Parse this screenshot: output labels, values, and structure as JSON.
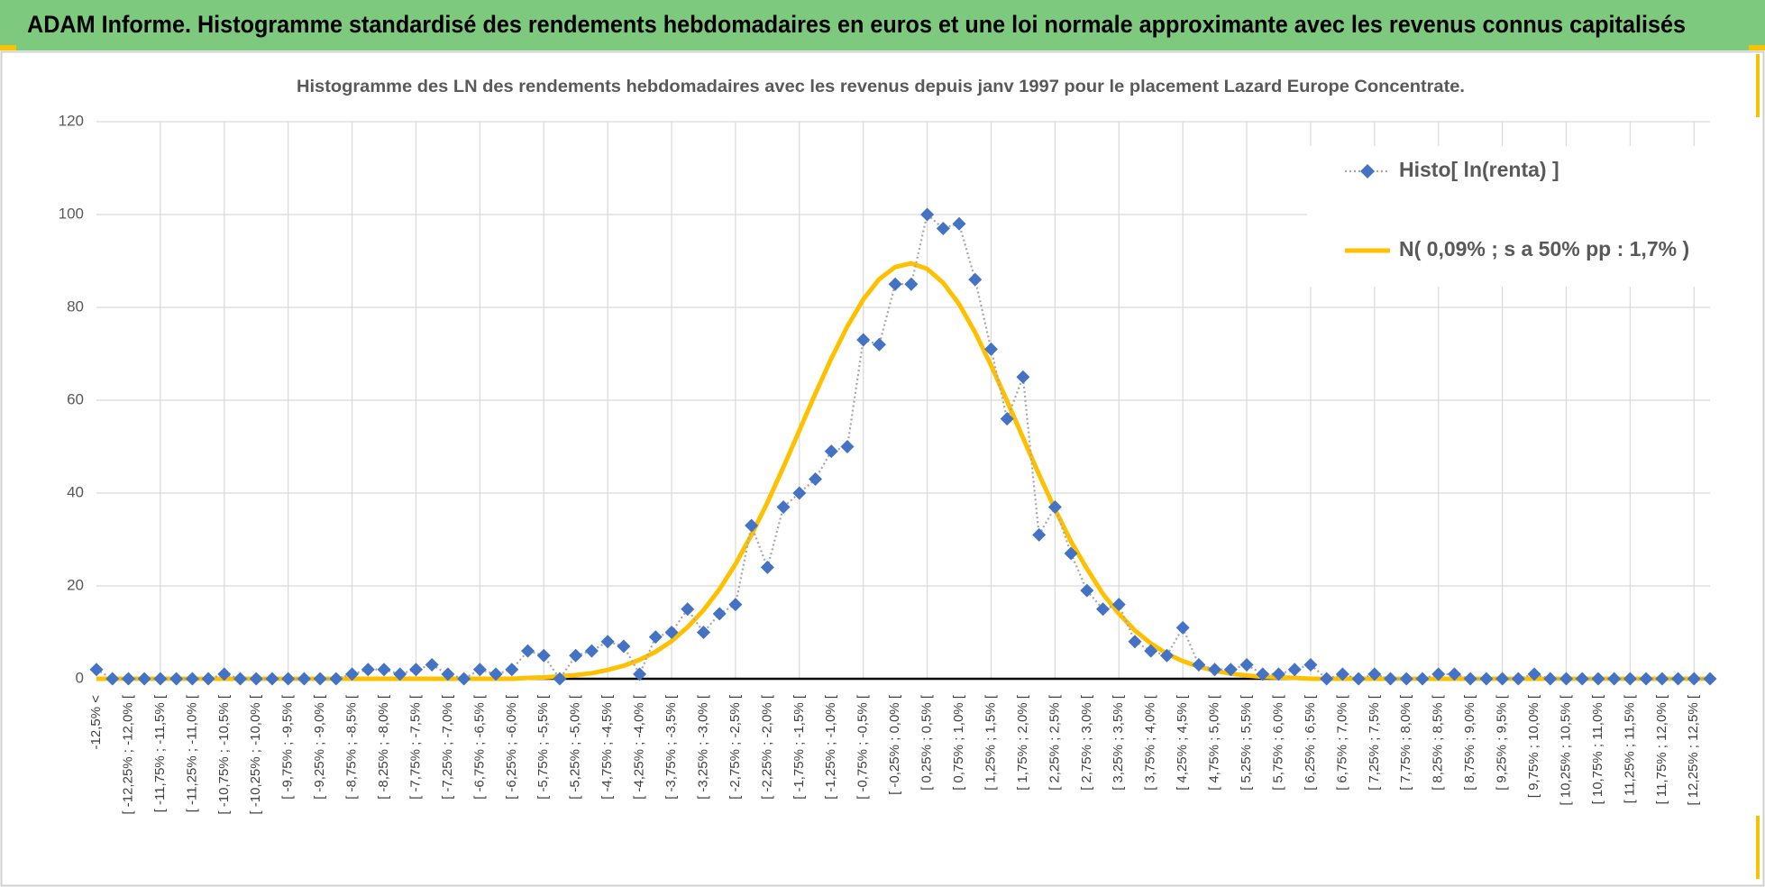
{
  "header": {
    "title": "ADAM Informe. Histogramme standardisé des rendements hebdomadaires en euros et une loi normale approximante avec les revenus connus capitalisés"
  },
  "chart_data": {
    "type": "line",
    "title": "Histogramme des LN des rendements hebdomadaires avec les revenus depuis janv 1997 pour le placement Lazard Europe Concentrate.",
    "categories": [
      "-12,5% <",
      null,
      "[ -12,25% ; -12,0% [",
      null,
      "[ -11,75% ; -11,5% [",
      null,
      "[ -11,25% ; -11,0% [",
      null,
      "[ -10,75% ; -10,5% [",
      null,
      "[ -10,25% ; -10,0% [",
      null,
      "[ -9,75% ; -9,5% [",
      null,
      "[ -9,25% ; -9,0% [",
      null,
      "[ -8,75% ; -8,5% [",
      null,
      "[ -8,25% ; -8,0% [",
      null,
      "[ -7,75% ; -7,5% [",
      null,
      "[ -7,25% ; -7,0% [",
      null,
      "[ -6,75% ; -6,5% [",
      null,
      "[ -6,25% ; -6,0% [",
      null,
      "[ -5,75% ; -5,5% [",
      null,
      "[ -5,25% ; -5,0% [",
      null,
      "[ -4,75% ; -4,5% [",
      null,
      "[ -4,25% ; -4,0% [",
      null,
      "[ -3,75% ; -3,5% [",
      null,
      "[ -3,25% ; -3,0% [",
      null,
      "[ -2,75% ; -2,5% [",
      null,
      "[ -2,25% ; -2,0% [",
      null,
      "[ -1,75% ; -1,5% [",
      null,
      "[ -1,25% ; -1,0% [",
      null,
      "[ -0,75% ; -0,5% [",
      null,
      "[ -0,25% ; 0,0% [",
      null,
      "[ 0,25% ; 0,5% [",
      null,
      "[ 0,75% ; 1,0% [",
      null,
      "[ 1,25% ; 1,5% [",
      null,
      "[ 1,75% ; 2,0% [",
      null,
      "[ 2,25% ; 2,5% [",
      null,
      "[ 2,75% ; 3,0% [",
      null,
      "[ 3,25% ; 3,5% [",
      null,
      "[ 3,75% ; 4,0% [",
      null,
      "[ 4,25% ; 4,5% [",
      null,
      "[ 4,75% ; 5,0% [",
      null,
      "[ 5,25% ; 5,5% [",
      null,
      "[ 5,75% ; 6,0% [",
      null,
      "[ 6,25% ; 6,5% [",
      null,
      "[ 6,75% ; 7,0% [",
      null,
      "[ 7,25% ; 7,5% [",
      null,
      "[ 7,75% ; 8,0% [",
      null,
      "[ 8,25% ; 8,5% [",
      null,
      "[ 8,75% ; 9,0% [",
      null,
      "[ 9,25% ; 9,5% [",
      null,
      "[ 9,75% ; 10,0% [",
      null,
      "[ 10,25% ; 10,5% [",
      null,
      "[ 10,75% ; 11,0% [",
      null,
      "[ 11,25% ; 11,5% [",
      null,
      "[ 11,75% ; 12,0% [",
      null,
      "[ 12,25% ; 12,5% [",
      null
    ],
    "series": [
      {
        "name": "Histo[ ln(renta) ]",
        "color": "#4472c4",
        "line_color": "#a6a6a6",
        "marker": "diamond",
        "dash": "dotted",
        "values": [
          2,
          0,
          0,
          0,
          0,
          0,
          0,
          0,
          1,
          0,
          0,
          0,
          0,
          0,
          0,
          0,
          1,
          2,
          2,
          1,
          2,
          3,
          1,
          0,
          2,
          1,
          2,
          6,
          5,
          0,
          5,
          6,
          8,
          7,
          1,
          9,
          10,
          15,
          10,
          14,
          16,
          33,
          24,
          37,
          40,
          43,
          49,
          50,
          73,
          72,
          85,
          85,
          100,
          97,
          98,
          86,
          71,
          56,
          65,
          31,
          37,
          27,
          19,
          15,
          16,
          8,
          6,
          5,
          11,
          3,
          2,
          2,
          3,
          1,
          1,
          2,
          3,
          0,
          1,
          0,
          1,
          0,
          0,
          0,
          1,
          1,
          0,
          0,
          0,
          0,
          1,
          0,
          0,
          0,
          0,
          0,
          0,
          0,
          0,
          0,
          0,
          0
        ]
      },
      {
        "name": "N( 0,09% ; s a 50% pp : 1,7% )",
        "color": "#ffc000",
        "marker": "none",
        "dash": "solid",
        "values": [
          0,
          0,
          0,
          0,
          0,
          0,
          0,
          0,
          0,
          0,
          0,
          0,
          0,
          0,
          0,
          0,
          0,
          0,
          0,
          0,
          0,
          0,
          0,
          0,
          0,
          0,
          0,
          0.2,
          0.3,
          0.5,
          0.8,
          1.2,
          1.9,
          2.8,
          4.1,
          5.8,
          8.1,
          11.1,
          14.8,
          19.3,
          24.7,
          31,
          38,
          45.6,
          53.5,
          61.4,
          69,
          75.9,
          81.7,
          86.1,
          88.7,
          89.5,
          88.3,
          85.3,
          80.7,
          74.6,
          67.5,
          59.8,
          51.9,
          44,
          36.5,
          29.6,
          23.7,
          18.3,
          14,
          10.4,
          7.6,
          5.4,
          3.8,
          2.6,
          1.7,
          1.1,
          0.7,
          0.4,
          0.3,
          0.2,
          0,
          0,
          0,
          0,
          0,
          0,
          0,
          0,
          0,
          0,
          0,
          0,
          0,
          0,
          0,
          0,
          0,
          0,
          0,
          0,
          0,
          0,
          0,
          0,
          0,
          0
        ]
      }
    ],
    "ylim": [
      0,
      120
    ],
    "yticks": [
      0,
      20,
      40,
      60,
      80,
      100,
      120
    ],
    "grid": true,
    "legend": "top-right"
  }
}
